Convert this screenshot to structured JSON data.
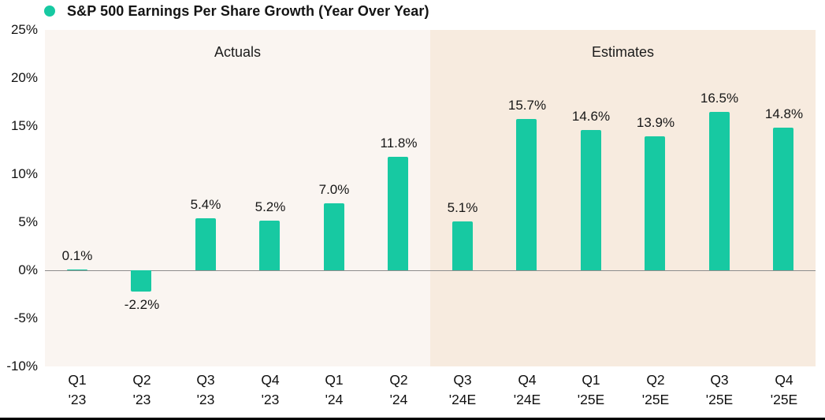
{
  "chart_data": {
    "type": "bar",
    "title": "S&P 500 Earnings Per Share Growth (Year Over Year)",
    "categories": [
      [
        "Q1",
        "'23"
      ],
      [
        "Q2",
        "'23"
      ],
      [
        "Q3",
        "'23"
      ],
      [
        "Q4",
        "'23"
      ],
      [
        "Q1",
        "'24"
      ],
      [
        "Q2",
        "'24"
      ],
      [
        "Q3",
        "'24E"
      ],
      [
        "Q4",
        "'24E"
      ],
      [
        "Q1",
        "'25E"
      ],
      [
        "Q2",
        "'25E"
      ],
      [
        "Q3",
        "'25E"
      ],
      [
        "Q4",
        "'25E"
      ]
    ],
    "values": [
      0.1,
      -2.2,
      5.4,
      5.2,
      7.0,
      11.8,
      5.1,
      15.7,
      14.6,
      13.9,
      16.5,
      14.8
    ],
    "labels": [
      "0.1%",
      "-2.2%",
      "5.4%",
      "5.2%",
      "7.0%",
      "11.8%",
      "5.1%",
      "15.7%",
      "14.6%",
      "13.9%",
      "16.5%",
      "14.8%"
    ],
    "xlabel": "",
    "ylabel": "",
    "ylim": [
      -10,
      25
    ],
    "y_ticks": [
      25,
      20,
      15,
      10,
      5,
      0,
      -5,
      -10
    ],
    "y_tick_labels": [
      "25%",
      "20%",
      "15%",
      "10%",
      "5%",
      "0%",
      "-5%",
      "-10%"
    ],
    "grid": false,
    "legend_position": "top-left",
    "bar_color": "#17C9A2",
    "regions": [
      {
        "label": "Actuals",
        "start": 0,
        "end": 5,
        "bg": "#FAF5F1"
      },
      {
        "label": "Estimates",
        "start": 6,
        "end": 11,
        "bg": "#F7EBDF"
      }
    ]
  }
}
